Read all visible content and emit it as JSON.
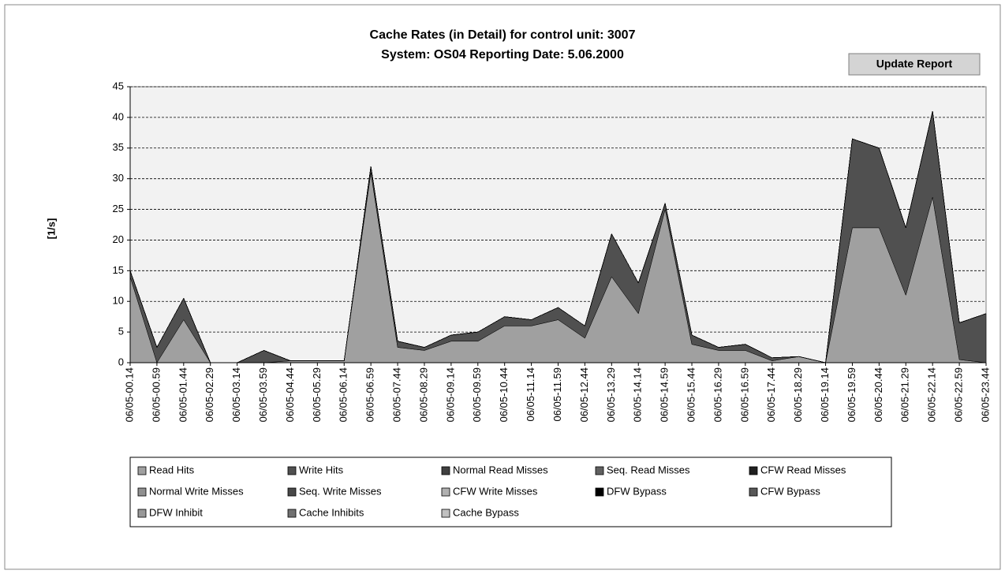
{
  "chart_data": {
    "type": "stacked_area",
    "title": "Cache Rates (in Detail) for control unit: 3007",
    "subtitle": "System: OS04  Reporting Date: 5.06.2000",
    "button": "Update Report",
    "y_label": "[1/s]",
    "categories": [
      "06/05-00.14",
      "06/05-00.59",
      "06/05-01.44",
      "06/05-02.29",
      "06/05-03.14",
      "06/05-03.59",
      "06/05-04.44",
      "06/05-05.29",
      "06/05-06.14",
      "06/05-06.59",
      "06/05-07.44",
      "06/05-08.29",
      "06/05-09.14",
      "06/05-09.59",
      "06/05-10.44",
      "06/05-11.14",
      "06/05-11.59",
      "06/05-12.44",
      "06/05-13.29",
      "06/05-14.14",
      "06/05-14.59",
      "06/05-15.44",
      "06/05-16.29",
      "06/05-16.59",
      "06/05-17.44",
      "06/05-18.29",
      "06/05-19.14",
      "06/05-19.59",
      "06/05-20.44",
      "06/05-21.29",
      "06/05-22.14",
      "06/05-22.59",
      "06/05-23.44"
    ],
    "series": [
      {
        "name": "Read Hits",
        "color": "#a0a0a0",
        "values": [
          14,
          0,
          7,
          0,
          0,
          0,
          0.3,
          0.3,
          0.3,
          31,
          2.5,
          2,
          3.5,
          3.5,
          6,
          6,
          7,
          4,
          14,
          8,
          25,
          3,
          2,
          2,
          0.3,
          1,
          0,
          22,
          22,
          11,
          27,
          0.5,
          0
        ]
      },
      {
        "name": "Write Hits",
        "color": "#505050",
        "values": [
          1,
          2.5,
          3.5,
          0,
          0,
          2,
          0,
          0,
          0,
          1,
          1,
          0.5,
          1,
          1.5,
          1.5,
          1,
          2,
          2,
          7,
          5,
          1,
          1.5,
          0.5,
          1,
          0.5,
          0,
          0,
          14.5,
          13,
          11,
          14,
          6,
          8
        ]
      },
      {
        "name": "Normal Read Misses",
        "color": "#404040",
        "values": [
          0,
          0,
          0,
          0,
          0,
          0,
          0,
          0,
          0,
          0,
          0,
          0,
          0,
          0,
          0,
          0,
          0,
          0,
          0,
          0,
          0,
          0,
          0,
          0,
          0,
          0,
          0,
          0,
          0,
          0,
          0,
          0,
          0
        ]
      },
      {
        "name": "Seq. Read Misses",
        "color": "#606060",
        "values": [
          0,
          0,
          0,
          0,
          0,
          0,
          0,
          0,
          0,
          0,
          0,
          0,
          0,
          0,
          0,
          0,
          0,
          0,
          0,
          0,
          0,
          0,
          0,
          0,
          0,
          0,
          0,
          0,
          0,
          0,
          0,
          0,
          0
        ]
      },
      {
        "name": "CFW Read Misses",
        "color": "#202020",
        "values": [
          0,
          0,
          0,
          0,
          0,
          0,
          0,
          0,
          0,
          0,
          0,
          0,
          0,
          0,
          0,
          0,
          0,
          0,
          0,
          0,
          0,
          0,
          0,
          0,
          0,
          0,
          0,
          0,
          0,
          0,
          0,
          0,
          0
        ]
      },
      {
        "name": "Normal Write Misses",
        "color": "#909090",
        "values": [
          0,
          0,
          0,
          0,
          0,
          0,
          0,
          0,
          0,
          0,
          0,
          0,
          0,
          0,
          0,
          0,
          0,
          0,
          0,
          0,
          0,
          0,
          0,
          0,
          0,
          0,
          0,
          0,
          0,
          0,
          0,
          0,
          0
        ]
      },
      {
        "name": "Seq. Write Misses",
        "color": "#484848",
        "values": [
          0,
          0,
          0,
          0,
          0,
          0,
          0,
          0,
          0,
          0,
          0,
          0,
          0,
          0,
          0,
          0,
          0,
          0,
          0,
          0,
          0,
          0,
          0,
          0,
          0,
          0,
          0,
          0,
          0,
          0,
          0,
          0,
          0
        ]
      },
      {
        "name": "CFW Write Misses",
        "color": "#b0b0b0",
        "values": [
          0,
          0,
          0,
          0,
          0,
          0,
          0,
          0,
          0,
          0,
          0,
          0,
          0,
          0,
          0,
          0,
          0,
          0,
          0,
          0,
          0,
          0,
          0,
          0,
          0,
          0,
          0,
          0,
          0,
          0,
          0,
          0,
          0
        ]
      },
      {
        "name": "DFW Bypass",
        "color": "#000000",
        "values": [
          0,
          0,
          0,
          0,
          0,
          0,
          0,
          0,
          0,
          0,
          0,
          0,
          0,
          0,
          0,
          0,
          0,
          0,
          0,
          0,
          0,
          0,
          0,
          0,
          0,
          0,
          0,
          0,
          0,
          0,
          0,
          0,
          0
        ]
      },
      {
        "name": "CFW Bypass",
        "color": "#585858",
        "values": [
          0,
          0,
          0,
          0,
          0,
          0,
          0,
          0,
          0,
          0,
          0,
          0,
          0,
          0,
          0,
          0,
          0,
          0,
          0,
          0,
          0,
          0,
          0,
          0,
          0,
          0,
          0,
          0,
          0,
          0,
          0,
          0,
          0
        ]
      },
      {
        "name": "DFW Inhibit",
        "color": "#989898",
        "values": [
          0,
          0,
          0,
          0,
          0,
          0,
          0,
          0,
          0,
          0,
          0,
          0,
          0,
          0,
          0,
          0,
          0,
          0,
          0,
          0,
          0,
          0,
          0,
          0,
          0,
          0,
          0,
          0,
          0,
          0,
          0,
          0,
          0
        ]
      },
      {
        "name": "Cache Inhibits",
        "color": "#707070",
        "values": [
          0,
          0,
          0,
          0,
          0,
          0,
          0,
          0,
          0,
          0,
          0,
          0,
          0,
          0,
          0,
          0,
          0,
          0,
          0,
          0,
          0,
          0,
          0,
          0,
          0,
          0,
          0,
          0,
          0,
          0,
          0,
          0,
          0
        ]
      },
      {
        "name": "Cache Bypass",
        "color": "#c0c0c0",
        "values": [
          0,
          0,
          0,
          0,
          0,
          0,
          0,
          0,
          0,
          0,
          0,
          0,
          0,
          0,
          0,
          0,
          0,
          0,
          0,
          0,
          0,
          0,
          0,
          0,
          0,
          0,
          0,
          0,
          0,
          0,
          0,
          0,
          0
        ]
      }
    ],
    "ylim": [
      0,
      45
    ],
    "yticks": [
      0,
      5,
      10,
      15,
      20,
      25,
      30,
      35,
      40,
      45
    ],
    "grid": true
  }
}
